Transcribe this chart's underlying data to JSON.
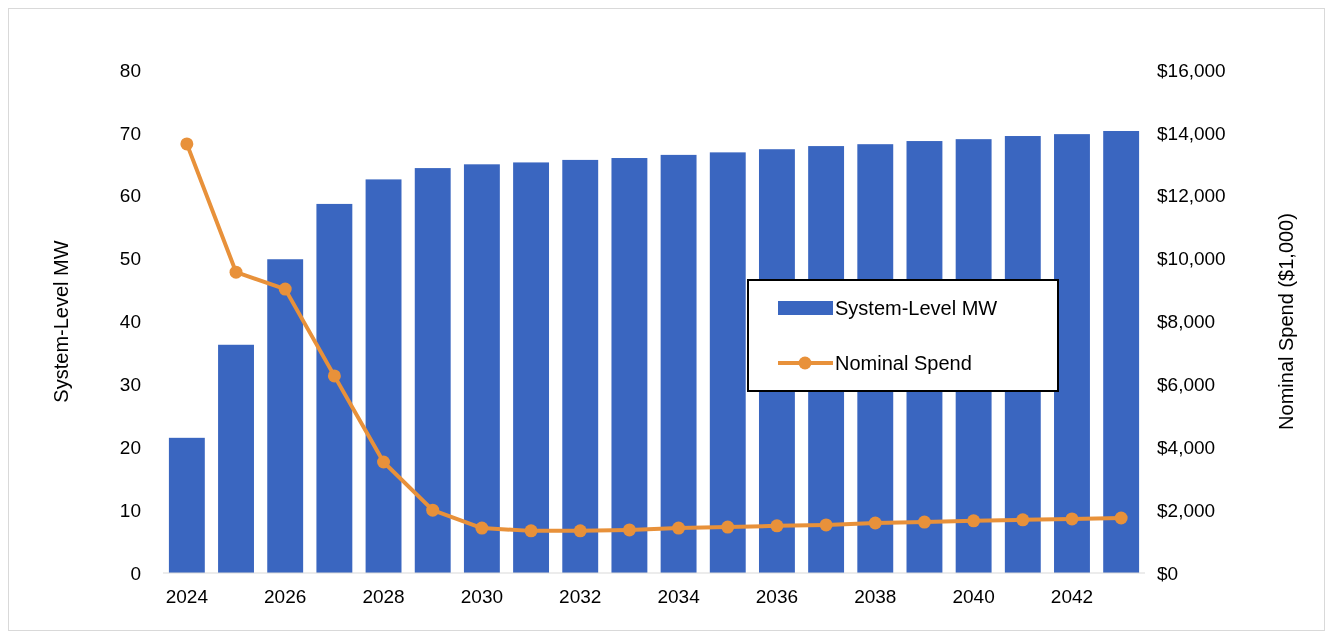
{
  "chart_data": {
    "type": "bar",
    "ylabel": "System-Level MW",
    "y2label": "Nominal Spend ($1,000)",
    "categories": [
      "2024",
      null,
      "2026",
      null,
      "2028",
      null,
      "2030",
      null,
      "2032",
      null,
      "2034",
      null,
      "2036",
      null,
      "2038",
      null,
      "2040",
      null,
      "2042",
      null
    ],
    "series": [
      {
        "name": "System-Level MW",
        "color": "#3a66c0",
        "values": [
          21.5,
          36.3,
          49.9,
          58.7,
          62.6,
          64.4,
          65.0,
          65.3,
          65.7,
          66.0,
          66.5,
          66.9,
          67.4,
          67.9,
          68.2,
          68.7,
          69.0,
          69.5,
          69.8,
          70.3
        ]
      },
      {
        "name": "Nominal Spend",
        "type": "line",
        "axis": "y2",
        "color": "#e8913a",
        "marker": "circle",
        "values": [
          13650,
          9570,
          9030,
          6270,
          3530,
          2000,
          1430,
          1340,
          1340,
          1370,
          1430,
          1460,
          1500,
          1530,
          1590,
          1620,
          1660,
          1690,
          1720,
          1750
        ]
      }
    ],
    "ylim": [
      0,
      80
    ],
    "yticks": [
      0,
      10,
      20,
      30,
      40,
      50,
      60,
      70,
      80
    ],
    "y2lim": [
      0,
      16000
    ],
    "y2ticks": [
      {
        "value": 0,
        "label": "$0"
      },
      {
        "value": 2000,
        "label": "$2,000"
      },
      {
        "value": 4000,
        "label": "$4,000"
      },
      {
        "value": 6000,
        "label": "$6,000"
      },
      {
        "value": 8000,
        "label": "$8,000"
      },
      {
        "value": 10000,
        "label": "$10,000"
      },
      {
        "value": 12000,
        "label": "$12,000"
      },
      {
        "value": 14000,
        "label": "$14,000"
      },
      {
        "value": 16000,
        "label": "$16,000"
      }
    ],
    "legend": "right"
  }
}
